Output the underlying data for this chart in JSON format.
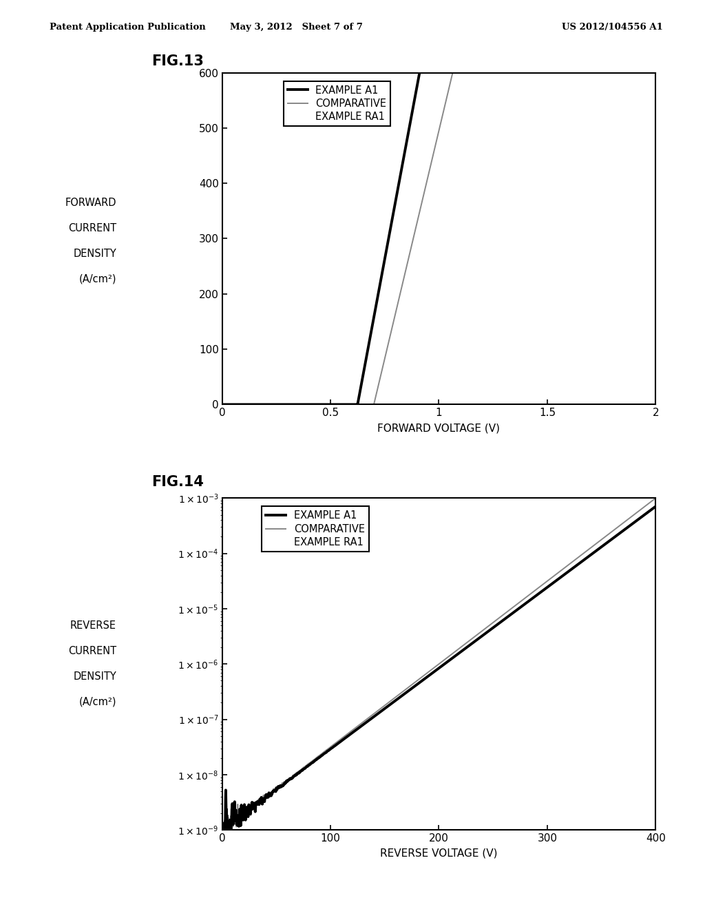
{
  "header_left": "Patent Application Publication",
  "header_center": "May 3, 2012   Sheet 7 of 7",
  "header_right": "US 2012/104556 A1",
  "fig13_title": "FIG.13",
  "fig14_title": "FIG.14",
  "fig13_ylabel_lines": [
    "FORWARD",
    "CURRENT",
    "DENSITY",
    "(A/cm²)"
  ],
  "fig13_xlabel": "FORWARD VOLTAGE (V)",
  "fig13_ylim": [
    0,
    600
  ],
  "fig13_xlim": [
    0,
    2
  ],
  "fig13_yticks": [
    0,
    100,
    200,
    300,
    400,
    500,
    600
  ],
  "fig13_xticks": [
    0,
    0.5,
    1.0,
    1.5,
    2.0
  ],
  "fig13_xticklabels": [
    "0",
    "0.5",
    "1",
    "1.5",
    "2"
  ],
  "fig14_ylabel_lines": [
    "REVERSE",
    "CURRENT",
    "DENSITY",
    "(A/cm²)"
  ],
  "fig14_xlabel": "REVERSE VOLTAGE (V)",
  "fig14_xlim": [
    0,
    400
  ],
  "fig14_xticks": [
    0,
    100,
    200,
    300,
    400
  ],
  "fig14_xticklabels": [
    "0",
    "100",
    "200",
    "300",
    "400"
  ],
  "legend_example_a1": "EXAMPLE A1",
  "legend_comparative_line1": "COMPARATIVE",
  "legend_comparative_line2": "EXAMPLE RA1",
  "background_color": "#ffffff",
  "line_color_thick": "#000000",
  "line_color_thin": "#888888"
}
